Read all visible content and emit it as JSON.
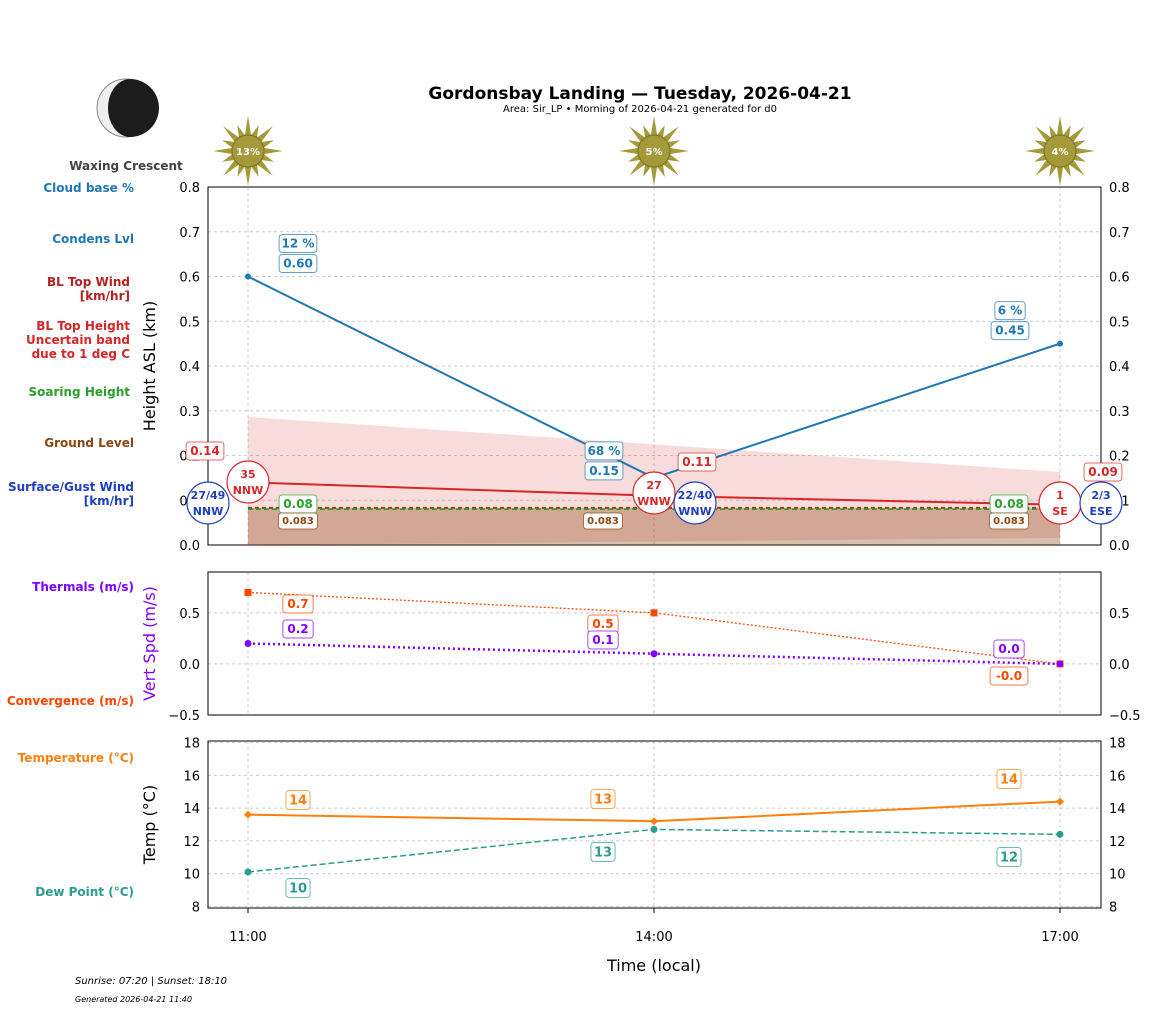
{
  "title": "Gordonsbay Landing — Tuesday, 2026-04-21",
  "subtitle": "Area: Sir_LP • Morning of 2026-04-21 generated for d0",
  "moon_phase": "Waxing Crescent",
  "footer": {
    "sun": "Sunrise: 07:20 | Sunset: 18:10",
    "generated": "Generated 2026-04-21 11:40"
  },
  "colors": {
    "cloud": "#1f77b4",
    "bl": "#d62728",
    "soar": "#2ca02c",
    "ground": "#8b4513",
    "surface": "#1f3fbf",
    "thermal": "#8000ff",
    "conv": "#ff4500",
    "temp": "#ff7f0e",
    "dew": "#2a9d8f",
    "sun": "#a59a3a"
  },
  "chart_data": [
    {
      "type": "line",
      "ylabel": "Height ASL (km)",
      "ylim": [
        0,
        0.8
      ],
      "yticks": [
        "0.0",
        "0.1",
        "0.2",
        "0.3",
        "0.4",
        "0.5",
        "0.6",
        "0.7",
        "0.8"
      ],
      "grid": true,
      "x": [
        "11:00",
        "14:00",
        "17:00"
      ],
      "legend_labels": {
        "cloud_pct": "Cloud base %",
        "condens": "Condens Lvl",
        "bl_wind": "BL Top Wind [km/hr]",
        "bl_top": "BL Top Height Uncertain band due to 1 deg C",
        "soar": "Soaring Height",
        "ground": "Ground Level",
        "surface": "Surface/Gust Wind [km/hr]"
      },
      "sun_pct": [
        "13%",
        "5%",
        "4%"
      ],
      "cloud_pct": [
        "12 %",
        "68 %",
        "6 %"
      ],
      "condens": [
        0.6,
        0.15,
        0.45
      ],
      "bl_top": [
        0.14,
        0.11,
        0.09
      ],
      "band_upper": [
        0.286,
        0.225,
        0.163
      ],
      "band_lower": [
        0.0,
        0.008,
        0.016
      ],
      "soar": [
        0.08,
        0.08,
        0.08
      ],
      "ground": [
        0.083,
        0.083,
        0.083
      ],
      "bl_wind": [
        {
          "speed": "35",
          "dir": "NNW"
        },
        {
          "speed": "27",
          "dir": "WNW"
        },
        {
          "speed": "1",
          "dir": "SE"
        }
      ],
      "surface_wind": [
        {
          "speed": "27/49",
          "dir": "NNW"
        },
        {
          "speed": "22/40",
          "dir": "WNW"
        },
        {
          "speed": "2/3",
          "dir": "ESE"
        }
      ]
    },
    {
      "type": "line",
      "ylabel": "Vert Spd (m/s)",
      "ylim": [
        -0.5,
        0.9
      ],
      "yticks": [
        "−0.5",
        "0.0",
        "0.5"
      ],
      "grid": true,
      "series": [
        {
          "name": "Thermals (m/s)",
          "values": [
            0.2,
            0.1,
            0.0
          ],
          "labels": [
            "0.2",
            "0.1",
            "0.0"
          ]
        },
        {
          "name": "Convergence (m/s)",
          "values": [
            0.7,
            0.5,
            -0.0
          ],
          "labels": [
            "0.7",
            "0.5",
            "-0.0"
          ]
        }
      ]
    },
    {
      "type": "line",
      "ylabel": "Temp (°C)",
      "xlabel": "Time (local)",
      "ylim": [
        8,
        18
      ],
      "yticks": [
        "8",
        "10",
        "12",
        "14",
        "16",
        "18"
      ],
      "grid": true,
      "series": [
        {
          "name": "Temperature (°C)",
          "values": [
            13.6,
            13.2,
            14.4
          ],
          "labels": [
            "14",
            "13",
            "14"
          ]
        },
        {
          "name": "Dew Point (°C)",
          "values": [
            10.1,
            12.7,
            12.4
          ],
          "labels": [
            "10",
            "13",
            "12"
          ]
        }
      ]
    }
  ]
}
